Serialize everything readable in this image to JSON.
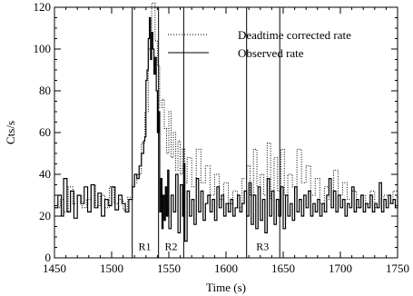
{
  "chart_data": {
    "type": "line",
    "xlabel": "Time (s)",
    "ylabel": "Cts/s",
    "xlim": [
      1450,
      1750
    ],
    "ylim": [
      0,
      120
    ],
    "x_ticks": [
      1450,
      1500,
      1550,
      1600,
      1650,
      1700,
      1750
    ],
    "y_ticks": [
      0,
      20,
      40,
      60,
      80,
      100,
      120
    ],
    "grid": false,
    "legend_position": "top-right",
    "series": [
      {
        "name": "Deadtime corrected rate",
        "style": "dotted",
        "color": "#000000",
        "points": [
          [
            1450,
            24
          ],
          [
            1455,
            28
          ],
          [
            1458,
            22
          ],
          [
            1462,
            34
          ],
          [
            1466,
            26
          ],
          [
            1470,
            30
          ],
          [
            1474,
            24
          ],
          [
            1478,
            28
          ],
          [
            1482,
            35
          ],
          [
            1486,
            25
          ],
          [
            1490,
            30
          ],
          [
            1494,
            24
          ],
          [
            1498,
            34
          ],
          [
            1502,
            26
          ],
          [
            1506,
            28
          ],
          [
            1510,
            23
          ],
          [
            1514,
            29
          ],
          [
            1518,
            36
          ],
          [
            1522,
            40
          ],
          [
            1526,
            55
          ],
          [
            1529,
            70
          ],
          [
            1532,
            100
          ],
          [
            1535,
            122
          ],
          [
            1538,
            104
          ],
          [
            1540,
            92
          ],
          [
            1542,
            72
          ],
          [
            1544,
            76
          ],
          [
            1546,
            62
          ],
          [
            1548,
            50
          ],
          [
            1550,
            70
          ],
          [
            1552,
            48
          ],
          [
            1554,
            60
          ],
          [
            1556,
            42
          ],
          [
            1558,
            56
          ],
          [
            1560,
            40
          ],
          [
            1562,
            52
          ],
          [
            1564,
            36
          ],
          [
            1566,
            48
          ],
          [
            1570,
            34
          ],
          [
            1574,
            52
          ],
          [
            1578,
            36
          ],
          [
            1582,
            44
          ],
          [
            1586,
            30
          ],
          [
            1590,
            40
          ],
          [
            1594,
            28
          ],
          [
            1598,
            36
          ],
          [
            1602,
            26
          ],
          [
            1606,
            32
          ],
          [
            1610,
            24
          ],
          [
            1614,
            38
          ],
          [
            1618,
            44
          ],
          [
            1621,
            30
          ],
          [
            1624,
            52
          ],
          [
            1627,
            34
          ],
          [
            1630,
            40
          ],
          [
            1633,
            30
          ],
          [
            1636,
            55
          ],
          [
            1639,
            28
          ],
          [
            1642,
            48
          ],
          [
            1645,
            32
          ],
          [
            1648,
            52
          ],
          [
            1651,
            30
          ],
          [
            1654,
            40
          ],
          [
            1658,
            34
          ],
          [
            1662,
            52
          ],
          [
            1666,
            36
          ],
          [
            1670,
            44
          ],
          [
            1674,
            30
          ],
          [
            1678,
            38
          ],
          [
            1682,
            26
          ],
          [
            1686,
            34
          ],
          [
            1690,
            28
          ],
          [
            1694,
            42
          ],
          [
            1698,
            30
          ],
          [
            1702,
            36
          ],
          [
            1706,
            28
          ],
          [
            1710,
            32
          ],
          [
            1714,
            24
          ],
          [
            1718,
            30
          ],
          [
            1722,
            26
          ],
          [
            1726,
            32
          ],
          [
            1730,
            24
          ],
          [
            1734,
            28
          ],
          [
            1738,
            30
          ],
          [
            1742,
            26
          ],
          [
            1746,
            32
          ],
          [
            1750,
            28
          ]
        ]
      },
      {
        "name": "Observed rate",
        "style": "solid",
        "color": "#000000",
        "points": [
          [
            1450,
            24
          ],
          [
            1453,
            30
          ],
          [
            1456,
            20
          ],
          [
            1458,
            38
          ],
          [
            1461,
            22
          ],
          [
            1464,
            32
          ],
          [
            1467,
            19
          ],
          [
            1470,
            30
          ],
          [
            1473,
            26
          ],
          [
            1476,
            34
          ],
          [
            1479,
            22
          ],
          [
            1482,
            35
          ],
          [
            1485,
            24
          ],
          [
            1488,
            31
          ],
          [
            1491,
            20
          ],
          [
            1494,
            28
          ],
          [
            1497,
            25
          ],
          [
            1500,
            34
          ],
          [
            1503,
            23
          ],
          [
            1506,
            30
          ],
          [
            1509,
            26
          ],
          [
            1512,
            22
          ],
          [
            1515,
            28
          ],
          [
            1518,
            34
          ],
          [
            1520,
            40
          ],
          [
            1522,
            38
          ],
          [
            1524,
            44
          ],
          [
            1526,
            50
          ],
          [
            1528,
            56
          ],
          [
            1529,
            58
          ],
          [
            1530,
            85
          ],
          [
            1531,
            90
          ],
          [
            1532,
            105
          ],
          [
            1533,
            115
          ],
          [
            1534,
            95
          ],
          [
            1535,
            108
          ],
          [
            1536,
            100
          ],
          [
            1537,
            88
          ],
          [
            1538,
            96
          ],
          [
            1539,
            80
          ],
          [
            1540,
            60
          ],
          [
            1541,
            70
          ],
          [
            1542,
            22
          ],
          [
            1543,
            38
          ],
          [
            1544,
            14
          ],
          [
            1545,
            30
          ],
          [
            1546,
            18
          ],
          [
            1547,
            34
          ],
          [
            1548,
            20
          ],
          [
            1549,
            42
          ],
          [
            1550,
            14
          ],
          [
            1552,
            30
          ],
          [
            1554,
            22
          ],
          [
            1556,
            40
          ],
          [
            1558,
            12
          ],
          [
            1560,
            35
          ],
          [
            1562,
            20
          ],
          [
            1563,
            45
          ],
          [
            1564,
            8
          ],
          [
            1566,
            32
          ],
          [
            1568,
            20
          ],
          [
            1570,
            28
          ],
          [
            1572,
            16
          ],
          [
            1574,
            38
          ],
          [
            1576,
            22
          ],
          [
            1578,
            32
          ],
          [
            1580,
            18
          ],
          [
            1582,
            26
          ],
          [
            1584,
            30
          ],
          [
            1586,
            22
          ],
          [
            1588,
            28
          ],
          [
            1590,
            18
          ],
          [
            1592,
            34
          ],
          [
            1594,
            24
          ],
          [
            1596,
            30
          ],
          [
            1598,
            20
          ],
          [
            1600,
            26
          ],
          [
            1602,
            22
          ],
          [
            1604,
            28
          ],
          [
            1606,
            20
          ],
          [
            1608,
            24
          ],
          [
            1610,
            30
          ],
          [
            1612,
            22
          ],
          [
            1614,
            26
          ],
          [
            1616,
            32
          ],
          [
            1618,
            20
          ],
          [
            1620,
            36
          ],
          [
            1622,
            16
          ],
          [
            1624,
            30
          ],
          [
            1626,
            14
          ],
          [
            1628,
            34
          ],
          [
            1630,
            18
          ],
          [
            1632,
            28
          ],
          [
            1634,
            12
          ],
          [
            1636,
            38
          ],
          [
            1638,
            20
          ],
          [
            1640,
            32
          ],
          [
            1642,
            16
          ],
          [
            1644,
            28
          ],
          [
            1646,
            20
          ],
          [
            1648,
            34
          ],
          [
            1650,
            14
          ],
          [
            1652,
            30
          ],
          [
            1654,
            20
          ],
          [
            1656,
            26
          ],
          [
            1658,
            18
          ],
          [
            1660,
            34
          ],
          [
            1662,
            22
          ],
          [
            1664,
            28
          ],
          [
            1666,
            20
          ],
          [
            1668,
            30
          ],
          [
            1670,
            24
          ],
          [
            1672,
            32
          ],
          [
            1674,
            20
          ],
          [
            1676,
            26
          ],
          [
            1678,
            22
          ],
          [
            1680,
            28
          ],
          [
            1682,
            20
          ],
          [
            1684,
            26
          ],
          [
            1686,
            22
          ],
          [
            1688,
            30
          ],
          [
            1690,
            38
          ],
          [
            1692,
            24
          ],
          [
            1694,
            32
          ],
          [
            1696,
            22
          ],
          [
            1698,
            30
          ],
          [
            1700,
            24
          ],
          [
            1702,
            28
          ],
          [
            1704,
            20
          ],
          [
            1706,
            26
          ],
          [
            1708,
            24
          ],
          [
            1710,
            34
          ],
          [
            1712,
            22
          ],
          [
            1714,
            28
          ],
          [
            1716,
            24
          ],
          [
            1718,
            30
          ],
          [
            1720,
            22
          ],
          [
            1722,
            26
          ],
          [
            1724,
            24
          ],
          [
            1726,
            30
          ],
          [
            1728,
            22
          ],
          [
            1730,
            26
          ],
          [
            1732,
            24
          ],
          [
            1734,
            36
          ],
          [
            1736,
            22
          ],
          [
            1738,
            28
          ],
          [
            1740,
            24
          ],
          [
            1742,
            30
          ],
          [
            1744,
            26
          ],
          [
            1746,
            28
          ],
          [
            1748,
            24
          ],
          [
            1750,
            30
          ]
        ]
      }
    ],
    "vertical_lines": [
      1518,
      1541,
      1563,
      1618,
      1647
    ],
    "annotations": [
      {
        "text": "R1",
        "x": 1529,
        "y": 2
      },
      {
        "text": "R2",
        "x": 1552,
        "y": 2
      },
      {
        "text": "R3",
        "x": 1632,
        "y": 2
      }
    ]
  }
}
